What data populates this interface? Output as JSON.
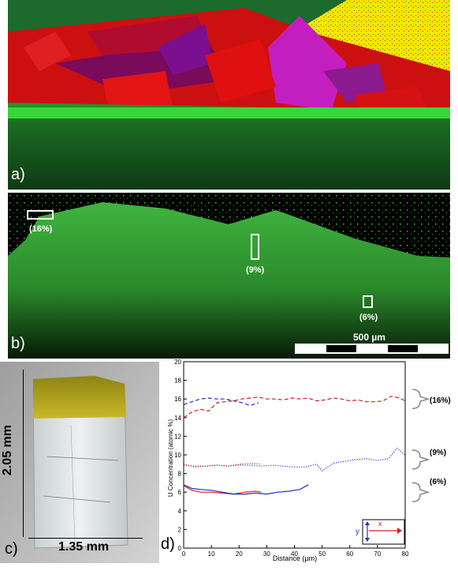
{
  "panel_a": {
    "label": "a)"
  },
  "panel_b": {
    "label": "b)",
    "regions": [
      {
        "label": "(16%)"
      },
      {
        "label": "(9%)"
      },
      {
        "label": "(6%)"
      }
    ],
    "scale_bar": "500 µm"
  },
  "panel_c": {
    "label": "c)",
    "height_label": "2.05 mm",
    "width_label": "1.35 mm"
  },
  "panel_d": {
    "label": "d)"
  },
  "chart_data": {
    "type": "line",
    "title": "",
    "xlabel": "Distance (µm)",
    "ylabel": "U Concentration (atomic %)",
    "xlim": [
      0,
      80
    ],
    "ylim": [
      0,
      20
    ],
    "xticks": [
      0,
      10,
      20,
      30,
      40,
      50,
      60,
      70,
      80
    ],
    "yticks": [
      0,
      2,
      4,
      6,
      8,
      10,
      12,
      14,
      16,
      18,
      20
    ],
    "grid": false,
    "series": [
      {
        "color": "#d42020",
        "style": "dashed",
        "x": [
          0,
          3,
          6,
          9,
          12,
          15,
          18,
          21,
          24,
          27,
          30,
          33,
          36,
          39,
          42,
          45,
          48,
          51,
          54,
          57,
          60,
          63,
          66,
          69,
          72,
          75,
          78,
          80
        ],
        "y": [
          14.0,
          14.6,
          14.9,
          14.7,
          15.6,
          15.7,
          15.8,
          16.0,
          16.1,
          16.2,
          16.0,
          16.0,
          15.9,
          16.1,
          16.0,
          16.1,
          15.8,
          15.9,
          16.1,
          16.0,
          15.8,
          15.9,
          15.7,
          15.7,
          15.8,
          16.3,
          16.1,
          15.8
        ]
      },
      {
        "color": "#2030c8",
        "style": "dashed",
        "x": [
          0,
          3,
          6,
          9,
          12,
          15,
          18,
          21,
          24,
          27
        ],
        "y": [
          15.4,
          15.7,
          16.0,
          16.1,
          16.0,
          16.0,
          15.8,
          15.6,
          15.3,
          15.6
        ]
      },
      {
        "color": "#2030c8",
        "style": "dotted",
        "x": [
          0,
          4,
          8,
          12,
          16,
          20,
          24,
          28,
          32,
          36,
          40,
          44,
          48,
          50,
          54,
          58,
          62,
          66,
          70,
          74,
          77,
          80
        ],
        "y": [
          9.0,
          8.7,
          8.8,
          8.9,
          8.8,
          8.9,
          8.9,
          8.8,
          8.9,
          8.8,
          8.7,
          8.7,
          9.0,
          8.3,
          9.1,
          9.3,
          9.5,
          9.6,
          9.4,
          9.6,
          10.7,
          10.0
        ]
      },
      {
        "color": "#d42020",
        "style": "dotted",
        "x": [
          0,
          4,
          8,
          12,
          16,
          20,
          24,
          28
        ],
        "y": [
          8.9,
          8.8,
          8.8,
          8.9,
          8.8,
          9.0,
          9.1,
          9.0
        ]
      },
      {
        "color": "#d42020",
        "style": "solid",
        "x": [
          0,
          3,
          6,
          10,
          14,
          18,
          22,
          26,
          28
        ],
        "y": [
          6.7,
          6.2,
          6.0,
          6.0,
          5.9,
          5.8,
          6.0,
          6.1,
          6.0
        ]
      },
      {
        "color": "#2030c8",
        "style": "solid",
        "x": [
          0,
          3,
          6,
          10,
          14,
          18,
          22,
          26,
          30,
          34,
          38,
          42,
          45
        ],
        "y": [
          6.8,
          6.4,
          6.3,
          6.2,
          6.0,
          5.8,
          5.8,
          5.9,
          5.8,
          6.0,
          6.1,
          6.3,
          6.8
        ]
      }
    ],
    "annotations": [
      {
        "label": "(16%)",
        "y": 16.0
      },
      {
        "label": "(9%)",
        "y": 9.5
      },
      {
        "label": "(6%)",
        "y": 6.0
      }
    ],
    "inset": {
      "x_label": "x",
      "y_label": "y"
    }
  }
}
